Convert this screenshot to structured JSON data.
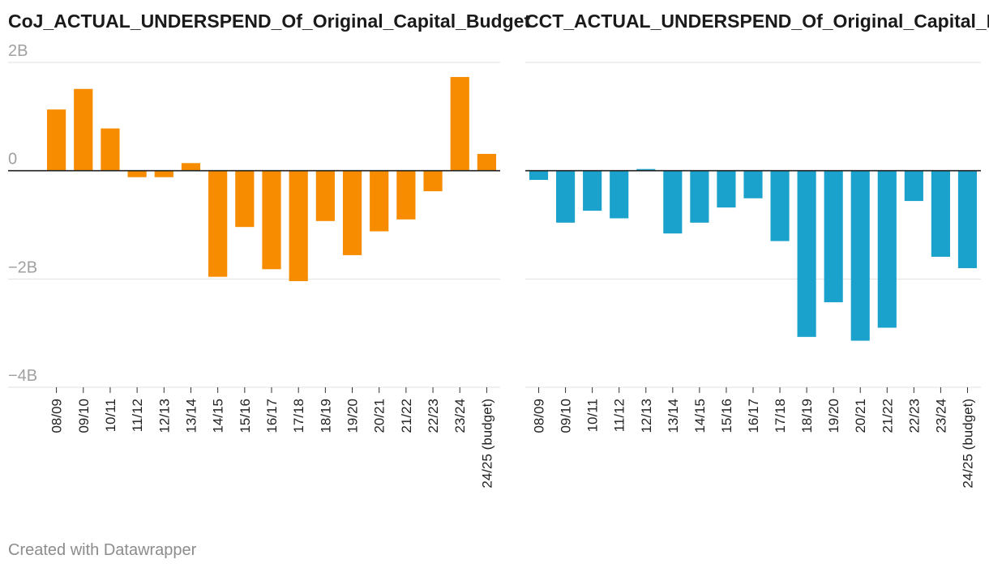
{
  "footer": {
    "credit": "Created with Datawrapper"
  },
  "chart_data": [
    {
      "type": "bar",
      "title": "CoJ_ACTUAL_UNDERSPEND_Of_Original_Capital_Budget",
      "color": "#f78c00",
      "categories": [
        "08/09",
        "09/10",
        "10/11",
        "11/12",
        "12/13",
        "13/14",
        "14/15",
        "15/16",
        "16/17",
        "17/18",
        "18/19",
        "19/20",
        "20/21",
        "21/22",
        "22/23",
        "23/24",
        "24/25 (budget)"
      ],
      "values": [
        1.13,
        1.51,
        0.78,
        -0.12,
        -0.12,
        0.14,
        -1.96,
        -1.04,
        -1.82,
        -2.04,
        -0.93,
        -1.56,
        -1.12,
        -0.9,
        -0.38,
        1.73,
        0.31
      ],
      "unit": "B",
      "yticks": [
        2,
        0,
        -2,
        -4
      ],
      "ytick_labels": [
        "2B",
        "0",
        "−2B",
        "−4B"
      ],
      "ylim": [
        -4,
        2
      ],
      "grid": true
    },
    {
      "type": "bar",
      "title": "CCT_ACTUAL_UNDERSPEND_Of_Original_Capital_Budget",
      "color": "#1aa2cc",
      "categories": [
        "08/09",
        "09/10",
        "10/11",
        "11/12",
        "12/13",
        "13/14",
        "14/15",
        "15/16",
        "16/17",
        "17/18",
        "18/19",
        "19/20",
        "20/21",
        "21/22",
        "22/23",
        "23/24",
        "24/25 (budget)"
      ],
      "values": [
        -0.17,
        -0.96,
        -0.74,
        -0.88,
        0.03,
        -1.16,
        -0.96,
        -0.68,
        -0.51,
        -1.3,
        -3.07,
        -2.43,
        -3.14,
        -2.9,
        -0.56,
        -1.59,
        -1.8
      ],
      "unit": "B",
      "yticks": [
        2,
        0,
        -2,
        -4
      ],
      "ytick_labels": [
        "2B",
        "0",
        "−2B",
        "−4B"
      ],
      "ylim": [
        -4,
        2
      ],
      "grid": true
    }
  ]
}
